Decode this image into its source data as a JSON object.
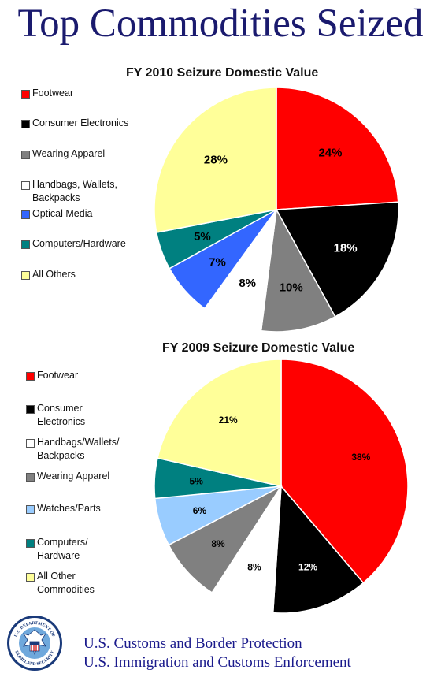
{
  "page": {
    "title": "Top Commodities Seized",
    "footer_lines": [
      "U.S. Customs and Border Protection",
      "U.S. Immigration and Customs Enforcement"
    ],
    "seal_text": "U.S. DEPARTMENT OF HOMELAND SECURITY"
  },
  "chart_data": [
    {
      "type": "pie",
      "title": "FY 2010 Seizure Domestic Value",
      "legend": [
        {
          "label": "Footwear",
          "color": "#ff0000"
        },
        {
          "label": "Consumer Electronics",
          "color": "#000000"
        },
        {
          "label": "Wearing Apparel",
          "color": "#808080"
        },
        {
          "label": "Handbags, Wallets, Backpacks",
          "color": "#ffffff"
        },
        {
          "label": "Optical Media",
          "color": "#3366ff"
        },
        {
          "label": "Computers/Hardware",
          "color": "#008080"
        },
        {
          "label": "All Others",
          "color": "#ffff99"
        }
      ],
      "slices": [
        {
          "label": "Footwear",
          "value": 24,
          "display": "24%",
          "color": "#ff0000",
          "text_color": "#000000"
        },
        {
          "label": "Consumer Electronics",
          "value": 18,
          "display": "18%",
          "color": "#000000",
          "text_color": "#ffffff"
        },
        {
          "label": "Wearing Apparel",
          "value": 10,
          "display": "10%",
          "color": "#808080",
          "text_color": "#000000"
        },
        {
          "label": "Handbags, Wallets, Backpacks",
          "value": 8,
          "display": "8%",
          "color": "#ffffff",
          "text_color": "#000000"
        },
        {
          "label": "Optical Media",
          "value": 7,
          "display": "7%",
          "color": "#3366ff",
          "text_color": "#000000"
        },
        {
          "label": "Computers/Hardware",
          "value": 5,
          "display": "5%",
          "color": "#008080",
          "text_color": "#000000"
        },
        {
          "label": "All Others",
          "value": 28,
          "display": "28%",
          "color": "#ffff99",
          "text_color": "#000000"
        }
      ]
    },
    {
      "type": "pie",
      "title": "FY 2009 Seizure Domestic Value",
      "legend": [
        {
          "label": "Footwear",
          "color": "#ff0000"
        },
        {
          "label": "Consumer Electronics",
          "color": "#000000"
        },
        {
          "label": "Handbags/Wallets/ Backpacks",
          "color": "#ffffff"
        },
        {
          "label": "Wearing Apparel",
          "color": "#808080"
        },
        {
          "label": "Watches/Parts",
          "color": "#99ccff"
        },
        {
          "label": "Computers/ Hardware",
          "color": "#008080"
        },
        {
          "label": "All Other Commodities",
          "color": "#ffff99"
        }
      ],
      "slices": [
        {
          "label": "Footwear",
          "value": 38,
          "display": "38%",
          "color": "#ff0000",
          "text_color": "#000000"
        },
        {
          "label": "Consumer Electronics",
          "value": 12,
          "display": "12%",
          "color": "#000000",
          "text_color": "#ffffff"
        },
        {
          "label": "Handbags/Wallets/ Backpacks",
          "value": 8,
          "display": "8%",
          "color": "#ffffff",
          "text_color": "#000000"
        },
        {
          "label": "Wearing Apparel",
          "value": 8,
          "display": "8%",
          "color": "#808080",
          "text_color": "#000000"
        },
        {
          "label": "Watches/Parts",
          "value": 6,
          "display": "6%",
          "color": "#99ccff",
          "text_color": "#000000"
        },
        {
          "label": "Computers/ Hardware",
          "value": 5,
          "display": "5%",
          "color": "#008080",
          "text_color": "#000000"
        },
        {
          "label": "All Other Commodities",
          "value": 21,
          "display": "21%",
          "color": "#ffff99",
          "text_color": "#000000"
        }
      ]
    }
  ]
}
